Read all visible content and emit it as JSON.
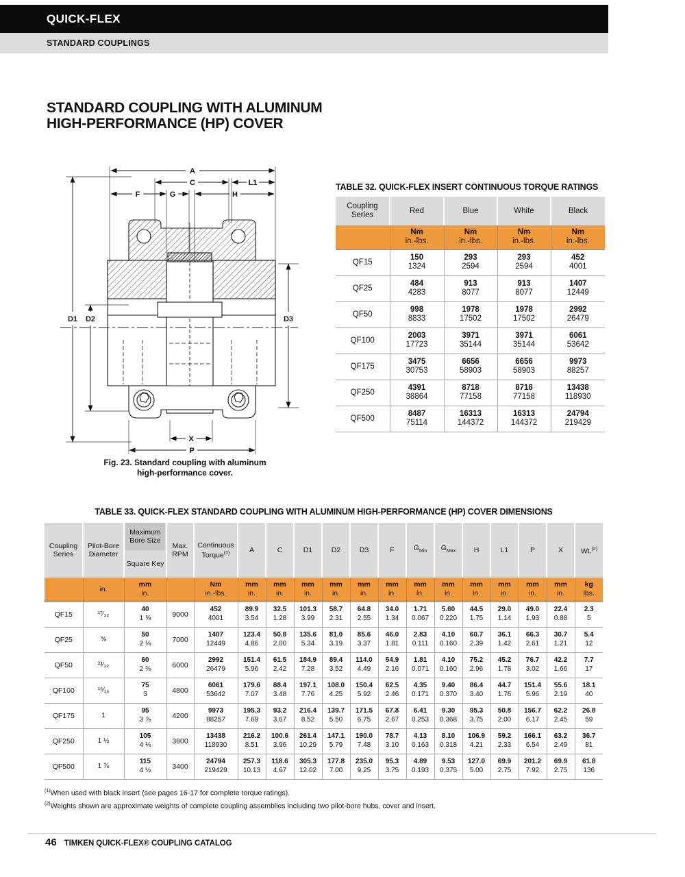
{
  "header": {
    "brand": "QUICK-FLEX",
    "section": "STANDARD COUPLINGS"
  },
  "page_title": {
    "line1": "STANDARD COUPLING WITH ALUMINUM",
    "line2": "HIGH-PERFORMANCE (HP) COVER"
  },
  "figure": {
    "caption_line1": "Fig. 23. Standard coupling with aluminum",
    "caption_line2": "high-performance cover.",
    "dims": {
      "A": "A",
      "C": "C",
      "L1": "L1",
      "F": "F",
      "G": "G",
      "H": "H",
      "D1": "D1",
      "D2": "D2",
      "D3": "D3",
      "X": "X",
      "P": "P"
    }
  },
  "table32": {
    "title": "TABLE 32. QUICK-FLEX INSERT CONTINUOUS TORQUE RATINGS",
    "columns": [
      "Coupling Series",
      "Red",
      "Blue",
      "White",
      "Black"
    ],
    "units": [
      {
        "a": "",
        "b": ""
      },
      {
        "a": "Nm",
        "b": "in.-lbs."
      },
      {
        "a": "Nm",
        "b": "in.-lbs."
      },
      {
        "a": "Nm",
        "b": "in.-lbs."
      },
      {
        "a": "Nm",
        "b": "in.-lbs."
      }
    ],
    "rows": [
      {
        "series": "QF15",
        "values": [
          [
            "150",
            "1324"
          ],
          [
            "293",
            "2594"
          ],
          [
            "293",
            "2594"
          ],
          [
            "452",
            "4001"
          ]
        ]
      },
      {
        "series": "QF25",
        "values": [
          [
            "484",
            "4283"
          ],
          [
            "913",
            "8077"
          ],
          [
            "913",
            "8077"
          ],
          [
            "1407",
            "12449"
          ]
        ]
      },
      {
        "series": "QF50",
        "values": [
          [
            "998",
            "8833"
          ],
          [
            "1978",
            "17502"
          ],
          [
            "1978",
            "17502"
          ],
          [
            "2992",
            "26479"
          ]
        ]
      },
      {
        "series": "QF100",
        "values": [
          [
            "2003",
            "17723"
          ],
          [
            "3971",
            "35144"
          ],
          [
            "3971",
            "35144"
          ],
          [
            "6061",
            "53642"
          ]
        ]
      },
      {
        "series": "QF175",
        "values": [
          [
            "3475",
            "30753"
          ],
          [
            "6656",
            "58903"
          ],
          [
            "6656",
            "58903"
          ],
          [
            "9973",
            "88257"
          ]
        ]
      },
      {
        "series": "QF250",
        "values": [
          [
            "4391",
            "38864"
          ],
          [
            "8718",
            "77158"
          ],
          [
            "8718",
            "77158"
          ],
          [
            "13438",
            "118930"
          ]
        ]
      },
      {
        "series": "QF500",
        "values": [
          [
            "8487",
            "75114"
          ],
          [
            "16313",
            "144372"
          ],
          [
            "16313",
            "144372"
          ],
          [
            "24794",
            "219429"
          ]
        ]
      }
    ]
  },
  "table33": {
    "title": "TABLE 33. QUICK-FLEX STANDARD COUPLING WITH ALUMINUM HIGH-PERFORMANCE (HP) COVER DIMENSIONS",
    "columns": [
      {
        "label": "Coupling Series"
      },
      {
        "label": "Pilot-Bore Diameter"
      },
      {
        "top": "Maximum Bore Size",
        "bottom": "Square Key"
      },
      {
        "label": "Max. RPM"
      },
      {
        "label": "Continuous Torque",
        "sup": "(1)"
      },
      {
        "label": "A"
      },
      {
        "label": "C"
      },
      {
        "label": "D1"
      },
      {
        "label": "D2"
      },
      {
        "label": "D3"
      },
      {
        "label": "F"
      },
      {
        "label": "G",
        "sub": "Min"
      },
      {
        "label": "G",
        "sub": "Max"
      },
      {
        "label": "H"
      },
      {
        "label": "L1"
      },
      {
        "label": "P"
      },
      {
        "label": "X"
      },
      {
        "label": "Wt.",
        "sup": "(2)"
      }
    ],
    "units": [
      {
        "a": "",
        "b": ""
      },
      {
        "a": "",
        "b": "in."
      },
      {
        "a": "mm",
        "b": "in."
      },
      {
        "a": "",
        "b": ""
      },
      {
        "a": "Nm",
        "b": "in.-lbs."
      },
      {
        "a": "mm",
        "b": "in."
      },
      {
        "a": "mm",
        "b": "in."
      },
      {
        "a": "mm",
        "b": "in."
      },
      {
        "a": "mm",
        "b": "in."
      },
      {
        "a": "mm",
        "b": "in."
      },
      {
        "a": "mm",
        "b": "in."
      },
      {
        "a": "mm",
        "b": "in."
      },
      {
        "a": "mm",
        "b": "in."
      },
      {
        "a": "mm",
        "b": "in."
      },
      {
        "a": "mm",
        "b": "in."
      },
      {
        "a": "mm",
        "b": "in."
      },
      {
        "a": "mm",
        "b": "in."
      },
      {
        "a": "kg",
        "b": "lbs."
      }
    ],
    "rows": [
      {
        "series": "QF15",
        "pilot_bore": "¹⁷⁄₃₂",
        "max_bore": [
          "40",
          "1 ⅝"
        ],
        "max_rpm": "9000",
        "torque": [
          "452",
          "4001"
        ],
        "dims": [
          [
            "89.9",
            "3.54"
          ],
          [
            "32.5",
            "1.28"
          ],
          [
            "101.3",
            "3.99"
          ],
          [
            "58.7",
            "2.31"
          ],
          [
            "64.8",
            "2.55"
          ],
          [
            "34.0",
            "1.34"
          ],
          [
            "1.71",
            "0.067"
          ],
          [
            "5.60",
            "0.220"
          ],
          [
            "44.5",
            "1.75"
          ],
          [
            "29.0",
            "1.14"
          ],
          [
            "49.0",
            "1.93"
          ],
          [
            "22.4",
            "0.88"
          ]
        ],
        "weight": [
          "2.3",
          "5"
        ]
      },
      {
        "series": "QF25",
        "pilot_bore": "⅝",
        "max_bore": [
          "50",
          "2 ⅛"
        ],
        "max_rpm": "7000",
        "torque": [
          "1407",
          "12449"
        ],
        "dims": [
          [
            "123.4",
            "4.86"
          ],
          [
            "50.8",
            "2.00"
          ],
          [
            "135.6",
            "5.34"
          ],
          [
            "81.0",
            "3.19"
          ],
          [
            "85.6",
            "3.37"
          ],
          [
            "46.0",
            "1.81"
          ],
          [
            "2.83",
            "0.111"
          ],
          [
            "4.10",
            "0.160"
          ],
          [
            "60.7",
            "2.39"
          ],
          [
            "36.1",
            "1.42"
          ],
          [
            "66.3",
            "2.61"
          ],
          [
            "30.7",
            "1.21"
          ]
        ],
        "weight": [
          "5.4",
          "12"
        ]
      },
      {
        "series": "QF50",
        "pilot_bore": "²³⁄₃₂",
        "max_bore": [
          "60",
          "2 ⅜"
        ],
        "max_rpm": "6000",
        "torque": [
          "2992",
          "26479"
        ],
        "dims": [
          [
            "151.4",
            "5.96"
          ],
          [
            "61.5",
            "2.42"
          ],
          [
            "184.9",
            "7.28"
          ],
          [
            "89.4",
            "3.52"
          ],
          [
            "114.0",
            "4.49"
          ],
          [
            "54.9",
            "2.16"
          ],
          [
            "1.81",
            "0.071"
          ],
          [
            "4.10",
            "0.160"
          ],
          [
            "75.2",
            "2.96"
          ],
          [
            "45.2",
            "1.78"
          ],
          [
            "76.7",
            "3.02"
          ],
          [
            "42.2",
            "1.66"
          ]
        ],
        "weight": [
          "7.7",
          "17"
        ]
      },
      {
        "series": "QF100",
        "pilot_bore": "¹⁵⁄₁₆",
        "max_bore": [
          "75",
          "3"
        ],
        "max_rpm": "4800",
        "torque": [
          "6061",
          "53642"
        ],
        "dims": [
          [
            "179.6",
            "7.07"
          ],
          [
            "88.4",
            "3.48"
          ],
          [
            "197.1",
            "7.76"
          ],
          [
            "108.0",
            "4.25"
          ],
          [
            "150.4",
            "5.92"
          ],
          [
            "62.5",
            "2.46"
          ],
          [
            "4.35",
            "0.171"
          ],
          [
            "9.40",
            "0.370"
          ],
          [
            "86.4",
            "3.40"
          ],
          [
            "44.7",
            "1.76"
          ],
          [
            "151.4",
            "5.96"
          ],
          [
            "55.6",
            "2.19"
          ]
        ],
        "weight": [
          "18.1",
          "40"
        ]
      },
      {
        "series": "QF175",
        "pilot_bore": "1",
        "max_bore": [
          "95",
          "3 ⅞"
        ],
        "max_rpm": "4200",
        "torque": [
          "9973",
          "88257"
        ],
        "dims": [
          [
            "195.3",
            "7.69"
          ],
          [
            "93.2",
            "3.67"
          ],
          [
            "216.4",
            "8.52"
          ],
          [
            "139.7",
            "5.50"
          ],
          [
            "171.5",
            "6.75"
          ],
          [
            "67.8",
            "2.67"
          ],
          [
            "6.41",
            "0.253"
          ],
          [
            "9.30",
            "0.368"
          ],
          [
            "95.3",
            "3.75"
          ],
          [
            "50.8",
            "2.00"
          ],
          [
            "156.7",
            "6.17"
          ],
          [
            "62.2",
            "2.45"
          ]
        ],
        "weight": [
          "26.8",
          "59"
        ]
      },
      {
        "series": "QF250",
        "pilot_bore": "1 ½",
        "max_bore": [
          "105",
          "4 ⅛"
        ],
        "max_rpm": "3800",
        "torque": [
          "13438",
          "118930"
        ],
        "dims": [
          [
            "216.2",
            "8.51"
          ],
          [
            "100.6",
            "3.96"
          ],
          [
            "261.4",
            "10.29"
          ],
          [
            "147.1",
            "5.79"
          ],
          [
            "190.0",
            "7.48"
          ],
          [
            "78.7",
            "3.10"
          ],
          [
            "4.13",
            "0.163"
          ],
          [
            "8.10",
            "0.318"
          ],
          [
            "106.9",
            "4.21"
          ],
          [
            "59.2",
            "2.33"
          ],
          [
            "166.1",
            "6.54"
          ],
          [
            "63.2",
            "2.49"
          ]
        ],
        "weight": [
          "36.7",
          "81"
        ]
      },
      {
        "series": "QF500",
        "pilot_bore": "1 ⅞",
        "max_bore": [
          "115",
          "4 ½"
        ],
        "max_rpm": "3400",
        "torque": [
          "24794",
          "219429"
        ],
        "dims": [
          [
            "257.3",
            "10.13"
          ],
          [
            "118.6",
            "4.67"
          ],
          [
            "305.3",
            "12.02"
          ],
          [
            "177.8",
            "7.00"
          ],
          [
            "235.0",
            "9.25"
          ],
          [
            "95.3",
            "3.75"
          ],
          [
            "4.89",
            "0.193"
          ],
          [
            "9.53",
            "0.375"
          ],
          [
            "127.0",
            "5.00"
          ],
          [
            "69.9",
            "2.75"
          ],
          [
            "201.2",
            "7.92"
          ],
          [
            "69.9",
            "2.75"
          ]
        ],
        "weight": [
          "61.8",
          "136"
        ]
      }
    ]
  },
  "footnotes": [
    {
      "marker": "(1)",
      "text": "When used with black insert (see pages 16-17 for complete torque ratings)."
    },
    {
      "marker": "(2)",
      "text": "Weights shown are approximate weights of complete coupling assemblies including two pilot-bore hubs, cover and insert."
    }
  ],
  "footer": {
    "page_number": "46",
    "catalog_title": "TIMKEN QUICK-FLEX® COUPLING CATALOG"
  },
  "colors": {
    "accent_orange": "#F0993C",
    "header_gray": "#DBDBDB",
    "dark_gray": "#C6C6C6",
    "bar_black": "#0A0A0A",
    "bar_gray": "#DCDDDE"
  }
}
